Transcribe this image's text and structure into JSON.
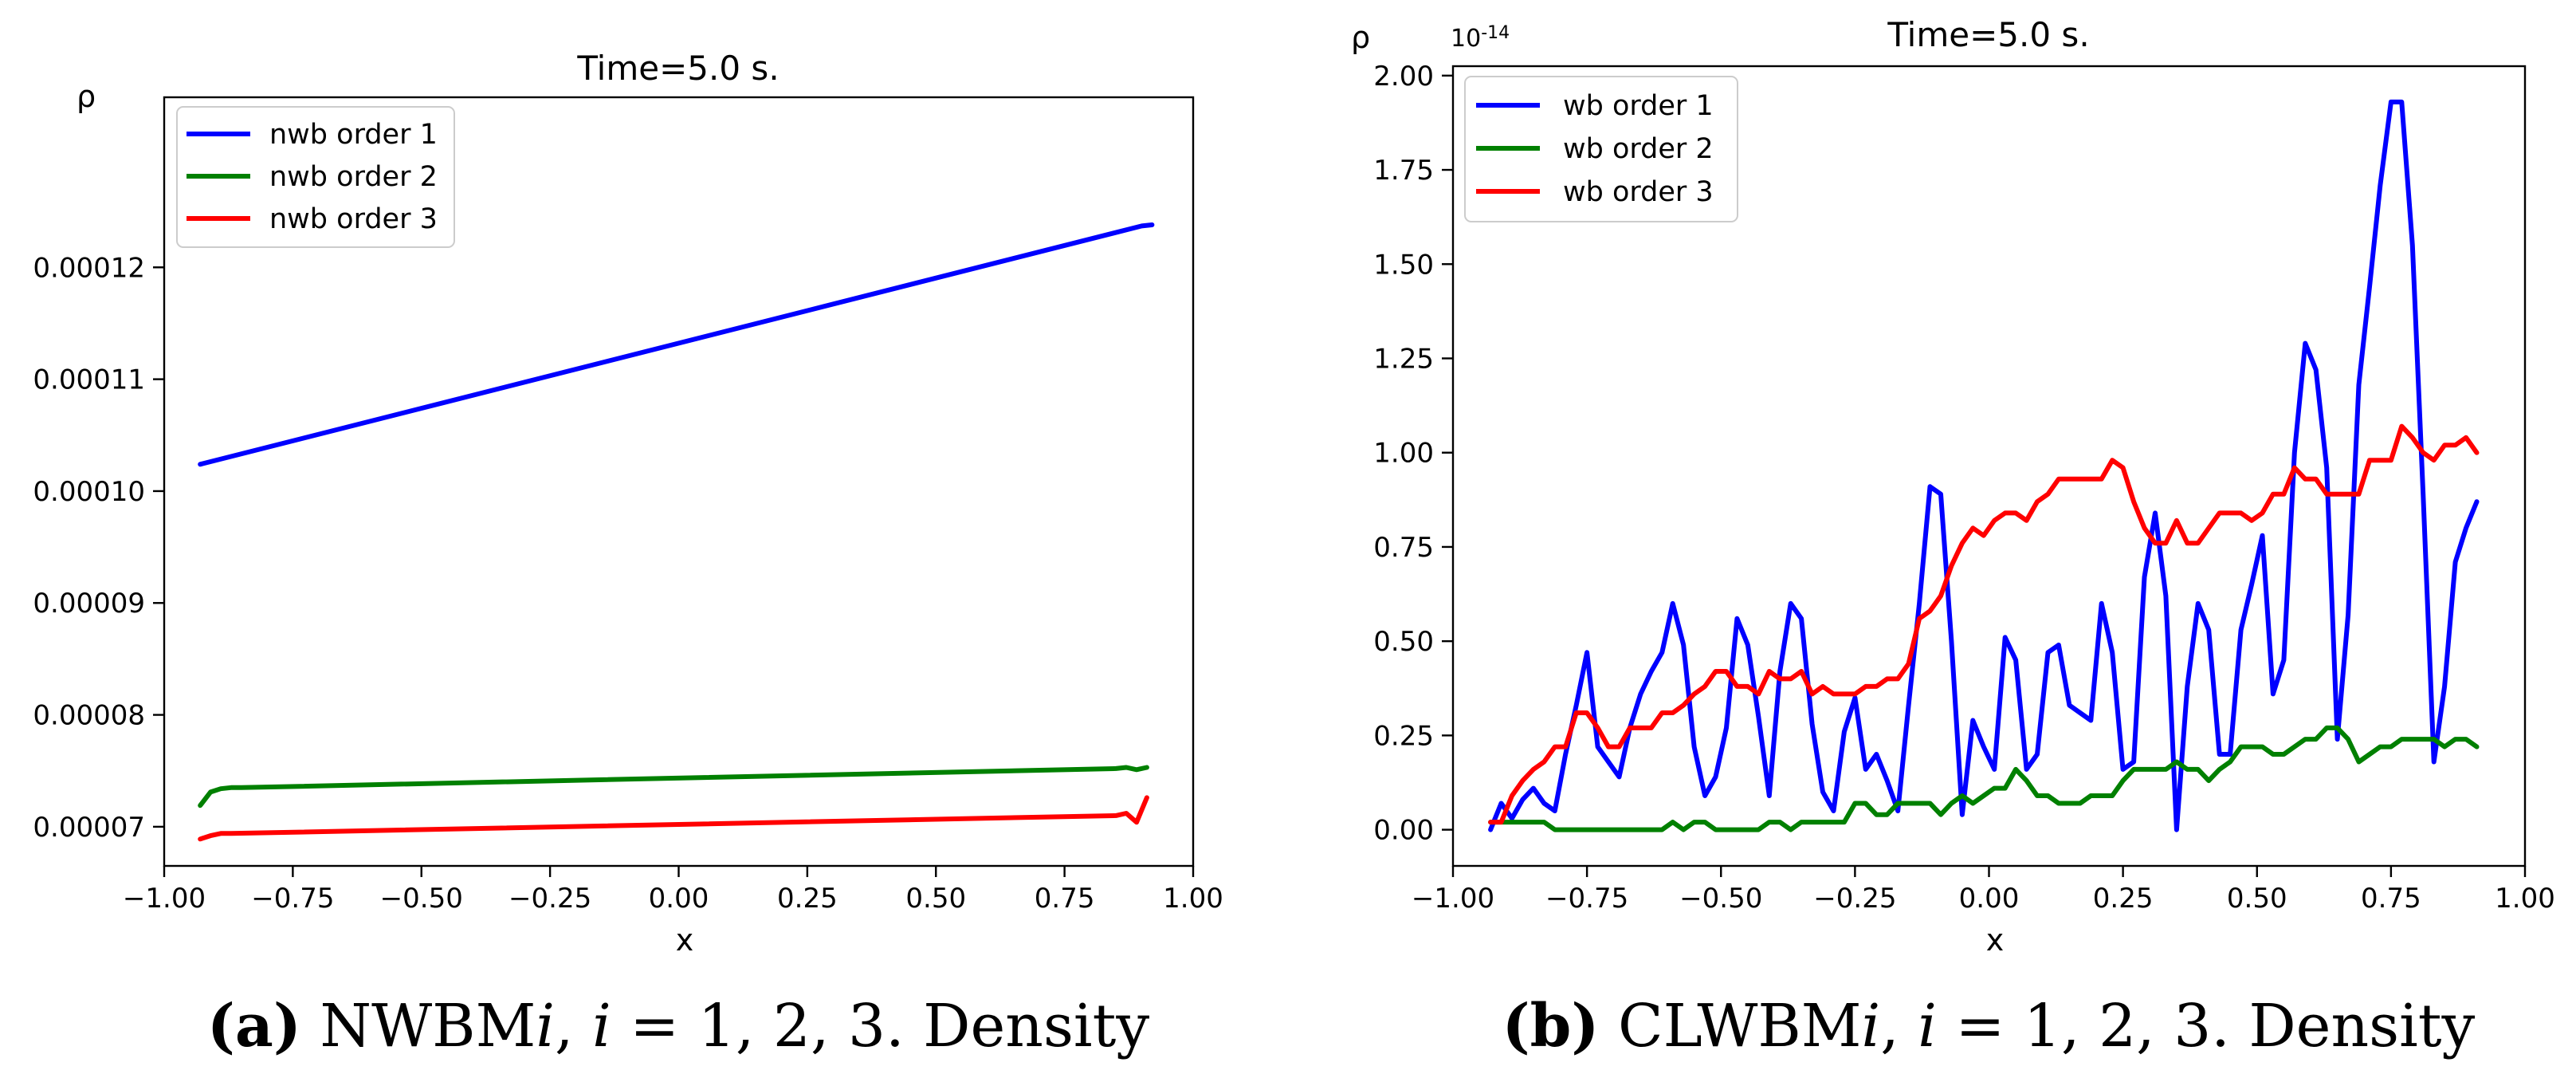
{
  "chart_data": [
    {
      "type": "line",
      "title": "Time=5.0 s.",
      "xlabel": "x",
      "ylabel": "ρ",
      "xlim": [
        -1.0,
        1.0
      ],
      "ylim": [
        6.65e-05,
        0.0001352
      ],
      "xticks": [
        -1.0,
        -0.75,
        -0.5,
        -0.25,
        0.0,
        0.25,
        0.5,
        0.75,
        1.0
      ],
      "xtick_labels": [
        "−1.00",
        "−0.75",
        "−0.50",
        "−0.25",
        "0.00",
        "0.25",
        "0.50",
        "0.75",
        "1.00"
      ],
      "yticks": [
        7e-05,
        8e-05,
        9e-05,
        0.0001,
        0.00011,
        0.00012
      ],
      "ytick_labels": [
        "0.00007",
        "0.00008",
        "0.00009",
        "0.00010",
        "0.00011",
        "0.00012"
      ],
      "legend_position": "top-left",
      "series": [
        {
          "name": "nwb order 1",
          "color": "#0000ff",
          "x": [
            -0.93,
            0.9,
            0.92
          ],
          "y": [
            0.0001024,
            0.0001237,
            0.0001238
          ]
        },
        {
          "name": "nwb order 2",
          "color": "#008000",
          "x": [
            -0.93,
            -0.91,
            -0.89,
            -0.87,
            -0.85,
            0.85,
            0.87,
            0.89,
            0.91
          ],
          "y": [
            7.19e-05,
            7.31e-05,
            7.34e-05,
            7.35e-05,
            7.35e-05,
            7.52e-05,
            7.53e-05,
            7.51e-05,
            7.53e-05
          ]
        },
        {
          "name": "nwb order 3",
          "color": "#ff0000",
          "x": [
            -0.93,
            -0.91,
            -0.89,
            -0.87,
            0.85,
            0.87,
            0.89,
            0.91
          ],
          "y": [
            6.89e-05,
            6.92e-05,
            6.94e-05,
            6.94e-05,
            7.1e-05,
            7.12e-05,
            7.04e-05,
            7.26e-05
          ]
        }
      ]
    },
    {
      "type": "line",
      "title": "Time=5.0 s.",
      "xlabel": "x",
      "ylabel": "ρ",
      "offset_text": "10",
      "offset_exponent": "-14",
      "xlim": [
        -1.0,
        1.0
      ],
      "ylim": [
        -0.096,
        2.025
      ],
      "xticks": [
        -1.0,
        -0.75,
        -0.5,
        -0.25,
        0.0,
        0.25,
        0.5,
        0.75,
        1.0
      ],
      "xtick_labels": [
        "−1.00",
        "−0.75",
        "−0.50",
        "−0.25",
        "0.00",
        "0.25",
        "0.50",
        "0.75",
        "1.00"
      ],
      "yticks": [
        0.0,
        0.25,
        0.5,
        0.75,
        1.0,
        1.25,
        1.5,
        1.75,
        2.0
      ],
      "ytick_labels": [
        "0.00",
        "0.25",
        "0.50",
        "0.75",
        "1.00",
        "1.25",
        "1.50",
        "1.75",
        "2.00"
      ],
      "legend_position": "top-left",
      "series": [
        {
          "name": "wb order 1",
          "color": "#0000ff",
          "x": [
            -0.93,
            -0.91,
            -0.89,
            -0.87,
            -0.85,
            -0.83,
            -0.81,
            -0.79,
            -0.77,
            -0.75,
            -0.73,
            -0.71,
            -0.69,
            -0.67,
            -0.65,
            -0.63,
            -0.61,
            -0.59,
            -0.57,
            -0.55,
            -0.53,
            -0.51,
            -0.49,
            -0.47,
            -0.45,
            -0.43,
            -0.41,
            -0.39,
            -0.37,
            -0.35,
            -0.33,
            -0.31,
            -0.29,
            -0.27,
            -0.25,
            -0.23,
            -0.21,
            -0.19,
            -0.17,
            -0.15,
            -0.13,
            -0.11,
            -0.09,
            -0.07,
            -0.05,
            -0.03,
            -0.01,
            0.01,
            0.03,
            0.05,
            0.07,
            0.09,
            0.11,
            0.13,
            0.15,
            0.17,
            0.19,
            0.21,
            0.23,
            0.25,
            0.27,
            0.29,
            0.31,
            0.33,
            0.35,
            0.37,
            0.39,
            0.41,
            0.43,
            0.45,
            0.47,
            0.49,
            0.51,
            0.53,
            0.55,
            0.57,
            0.59,
            0.61,
            0.63,
            0.65,
            0.67,
            0.69,
            0.71,
            0.73,
            0.75,
            0.77,
            0.79,
            0.81,
            0.83,
            0.85,
            0.87,
            0.89,
            0.91
          ],
          "y": [
            0.0,
            0.07,
            0.03,
            0.08,
            0.11,
            0.07,
            0.05,
            0.2,
            0.33,
            0.47,
            0.22,
            0.18,
            0.14,
            0.27,
            0.36,
            0.42,
            0.47,
            0.6,
            0.49,
            0.22,
            0.09,
            0.14,
            0.27,
            0.56,
            0.49,
            0.3,
            0.09,
            0.42,
            0.6,
            0.56,
            0.28,
            0.1,
            0.05,
            0.26,
            0.35,
            0.16,
            0.2,
            0.13,
            0.05,
            0.33,
            0.6,
            0.91,
            0.89,
            0.5,
            0.04,
            0.29,
            0.22,
            0.16,
            0.51,
            0.45,
            0.16,
            0.2,
            0.47,
            0.49,
            0.33,
            0.31,
            0.29,
            0.6,
            0.47,
            0.16,
            0.18,
            0.67,
            0.84,
            0.62,
            0.0,
            0.38,
            0.6,
            0.53,
            0.2,
            0.2,
            0.53,
            0.65,
            0.78,
            0.36,
            0.45,
            1.0,
            1.29,
            1.22,
            0.96,
            0.24,
            0.57,
            1.18,
            1.44,
            1.71,
            1.93,
            1.93,
            1.55,
            0.89,
            0.18,
            0.38,
            0.71,
            0.8,
            0.87
          ]
        },
        {
          "name": "wb order 2",
          "color": "#008000",
          "x": [
            -0.93,
            -0.91,
            -0.89,
            -0.87,
            -0.85,
            -0.83,
            -0.81,
            -0.79,
            -0.77,
            -0.75,
            -0.73,
            -0.71,
            -0.69,
            -0.67,
            -0.65,
            -0.63,
            -0.61,
            -0.59,
            -0.57,
            -0.55,
            -0.53,
            -0.51,
            -0.49,
            -0.47,
            -0.45,
            -0.43,
            -0.41,
            -0.39,
            -0.37,
            -0.35,
            -0.33,
            -0.31,
            -0.29,
            -0.27,
            -0.25,
            -0.23,
            -0.21,
            -0.19,
            -0.17,
            -0.15,
            -0.13,
            -0.11,
            -0.09,
            -0.07,
            -0.05,
            -0.03,
            -0.01,
            0.01,
            0.03,
            0.05,
            0.07,
            0.09,
            0.11,
            0.13,
            0.15,
            0.17,
            0.19,
            0.21,
            0.23,
            0.25,
            0.27,
            0.29,
            0.31,
            0.33,
            0.35,
            0.37,
            0.39,
            0.41,
            0.43,
            0.45,
            0.47,
            0.49,
            0.51,
            0.53,
            0.55,
            0.57,
            0.59,
            0.61,
            0.63,
            0.65,
            0.67,
            0.69,
            0.71,
            0.73,
            0.75,
            0.77,
            0.79,
            0.81,
            0.83,
            0.85,
            0.87,
            0.89,
            0.91
          ],
          "y": [
            0.02,
            0.02,
            0.02,
            0.02,
            0.02,
            0.02,
            0.0,
            0.0,
            0.0,
            0.0,
            0.0,
            0.0,
            0.0,
            0.0,
            0.0,
            0.0,
            0.0,
            0.02,
            0.0,
            0.02,
            0.02,
            0.0,
            0.0,
            0.0,
            0.0,
            0.0,
            0.02,
            0.02,
            0.0,
            0.02,
            0.02,
            0.02,
            0.02,
            0.02,
            0.07,
            0.07,
            0.04,
            0.04,
            0.07,
            0.07,
            0.07,
            0.07,
            0.04,
            0.07,
            0.09,
            0.07,
            0.09,
            0.11,
            0.11,
            0.16,
            0.13,
            0.09,
            0.09,
            0.07,
            0.07,
            0.07,
            0.09,
            0.09,
            0.09,
            0.13,
            0.16,
            0.16,
            0.16,
            0.16,
            0.18,
            0.16,
            0.16,
            0.13,
            0.16,
            0.18,
            0.22,
            0.22,
            0.22,
            0.2,
            0.2,
            0.22,
            0.24,
            0.24,
            0.27,
            0.27,
            0.24,
            0.18,
            0.2,
            0.22,
            0.22,
            0.24,
            0.24,
            0.24,
            0.24,
            0.22,
            0.24,
            0.24,
            0.22
          ]
        },
        {
          "name": "wb order 3",
          "color": "#ff0000",
          "x": [
            -0.93,
            -0.91,
            -0.89,
            -0.87,
            -0.85,
            -0.83,
            -0.81,
            -0.79,
            -0.77,
            -0.75,
            -0.73,
            -0.71,
            -0.69,
            -0.67,
            -0.65,
            -0.63,
            -0.61,
            -0.59,
            -0.57,
            -0.55,
            -0.53,
            -0.51,
            -0.49,
            -0.47,
            -0.45,
            -0.43,
            -0.41,
            -0.39,
            -0.37,
            -0.35,
            -0.33,
            -0.31,
            -0.29,
            -0.27,
            -0.25,
            -0.23,
            -0.21,
            -0.19,
            -0.17,
            -0.15,
            -0.13,
            -0.11,
            -0.09,
            -0.07,
            -0.05,
            -0.03,
            -0.01,
            0.01,
            0.03,
            0.05,
            0.07,
            0.09,
            0.11,
            0.13,
            0.15,
            0.17,
            0.19,
            0.21,
            0.23,
            0.25,
            0.27,
            0.29,
            0.31,
            0.33,
            0.35,
            0.37,
            0.39,
            0.41,
            0.43,
            0.45,
            0.47,
            0.49,
            0.51,
            0.53,
            0.55,
            0.57,
            0.59,
            0.61,
            0.63,
            0.65,
            0.67,
            0.69,
            0.71,
            0.73,
            0.75,
            0.77,
            0.79,
            0.81,
            0.83,
            0.85,
            0.87,
            0.89,
            0.91
          ],
          "y": [
            0.02,
            0.02,
            0.09,
            0.13,
            0.16,
            0.18,
            0.22,
            0.22,
            0.31,
            0.31,
            0.27,
            0.22,
            0.22,
            0.27,
            0.27,
            0.27,
            0.31,
            0.31,
            0.33,
            0.36,
            0.38,
            0.42,
            0.42,
            0.38,
            0.38,
            0.36,
            0.42,
            0.4,
            0.4,
            0.42,
            0.36,
            0.38,
            0.36,
            0.36,
            0.36,
            0.38,
            0.38,
            0.4,
            0.4,
            0.44,
            0.56,
            0.58,
            0.62,
            0.7,
            0.76,
            0.8,
            0.78,
            0.82,
            0.84,
            0.84,
            0.82,
            0.87,
            0.89,
            0.93,
            0.93,
            0.93,
            0.93,
            0.93,
            0.98,
            0.96,
            0.87,
            0.8,
            0.76,
            0.76,
            0.82,
            0.76,
            0.76,
            0.8,
            0.84,
            0.84,
            0.84,
            0.82,
            0.84,
            0.89,
            0.89,
            0.96,
            0.93,
            0.93,
            0.89,
            0.89,
            0.89,
            0.89,
            0.98,
            0.98,
            0.98,
            1.07,
            1.04,
            1.0,
            0.98,
            1.02,
            1.02,
            1.04,
            1.0
          ]
        }
      ]
    }
  ],
  "captions": [
    {
      "label": "(a)",
      "prefix": "NWBM",
      "var": "i",
      "mid": ", ",
      "var2": "i",
      "suffix": " = 1, 2, 3. Density"
    },
    {
      "label": "(b)",
      "prefix": "CLWBM",
      "var": "i",
      "mid": ", ",
      "var2": "i",
      "suffix": " = 1, 2, 3. Density"
    }
  ]
}
